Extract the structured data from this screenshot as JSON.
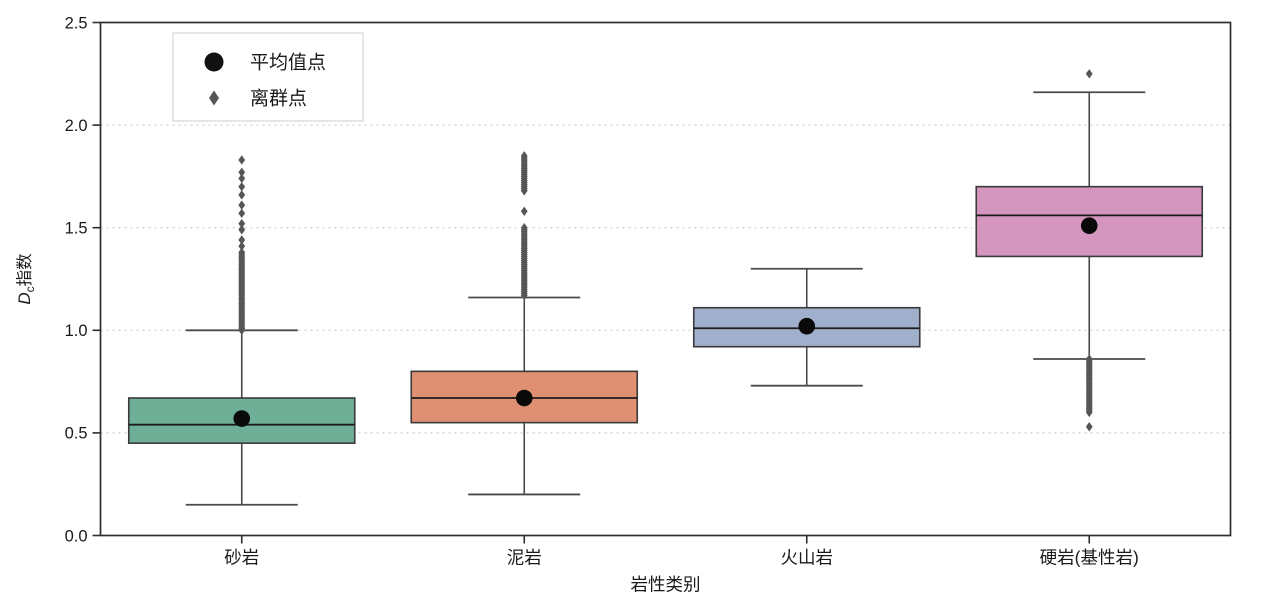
{
  "chart_data": {
    "type": "box",
    "title": "",
    "xlabel": "岩性类别",
    "ylabel": {
      "italic": "D",
      "subscript": "c",
      "text": "指数"
    },
    "ylim": [
      0.0,
      2.5
    ],
    "yticks": [
      0.0,
      0.5,
      1.0,
      1.5,
      2.0,
      2.5
    ],
    "ytick_labels": [
      "0.0",
      "0.5",
      "1.0",
      "1.5",
      "2.0",
      "2.5"
    ],
    "grid": "horizontal-dashed",
    "grid_color": "#cccccc",
    "legend": {
      "position": "upper-left",
      "items": [
        {
          "marker": "circle",
          "color": "#111111",
          "label": "平均值点"
        },
        {
          "marker": "diamond",
          "color": "#565656",
          "label": "离群点"
        }
      ]
    },
    "categories": [
      "砂岩",
      "泥岩",
      "火山岩",
      "硬岩(基性岩)"
    ],
    "series": [
      {
        "category": "砂岩",
        "color": "#6FAE97",
        "whisker_low": 0.15,
        "q1": 0.45,
        "median": 0.54,
        "q3": 0.67,
        "whisker_high": 1.0,
        "mean": 0.57,
        "outliers": [
          1.0,
          1.01,
          1.02,
          1.03,
          1.04,
          1.05,
          1.06,
          1.07,
          1.08,
          1.09,
          1.1,
          1.11,
          1.12,
          1.13,
          1.14,
          1.15,
          1.16,
          1.17,
          1.18,
          1.19,
          1.2,
          1.21,
          1.22,
          1.23,
          1.24,
          1.25,
          1.26,
          1.27,
          1.28,
          1.29,
          1.3,
          1.31,
          1.32,
          1.33,
          1.34,
          1.35,
          1.36,
          1.37,
          1.38,
          1.41,
          1.44,
          1.49,
          1.52,
          1.57,
          1.61,
          1.66,
          1.7,
          1.74,
          1.77,
          1.83
        ]
      },
      {
        "category": "泥岩",
        "color": "#E09072",
        "whisker_low": 0.2,
        "q1": 0.55,
        "median": 0.67,
        "q3": 0.8,
        "whisker_high": 1.16,
        "mean": 0.67,
        "outliers": [
          1.17,
          1.18,
          1.19,
          1.2,
          1.21,
          1.22,
          1.23,
          1.24,
          1.25,
          1.26,
          1.27,
          1.28,
          1.29,
          1.3,
          1.31,
          1.32,
          1.33,
          1.34,
          1.35,
          1.36,
          1.37,
          1.38,
          1.39,
          1.4,
          1.41,
          1.42,
          1.43,
          1.44,
          1.45,
          1.46,
          1.47,
          1.48,
          1.49,
          1.5,
          1.58,
          1.68,
          1.69,
          1.7,
          1.71,
          1.72,
          1.73,
          1.74,
          1.75,
          1.76,
          1.77,
          1.78,
          1.79,
          1.8,
          1.81,
          1.82,
          1.83,
          1.84,
          1.85
        ]
      },
      {
        "category": "火山岩",
        "color": "#A0AFCC",
        "whisker_low": 0.73,
        "q1": 0.92,
        "median": 1.01,
        "q3": 1.11,
        "whisker_high": 1.3,
        "mean": 1.02,
        "outliers": []
      },
      {
        "category": "硬岩(基性岩)",
        "color": "#D495BE",
        "whisker_low": 0.86,
        "q1": 1.36,
        "median": 1.56,
        "q3": 1.7,
        "whisker_high": 2.16,
        "mean": 1.51,
        "outliers": [
          0.53,
          0.6,
          0.61,
          0.62,
          0.63,
          0.64,
          0.65,
          0.66,
          0.67,
          0.68,
          0.69,
          0.7,
          0.71,
          0.72,
          0.73,
          0.74,
          0.75,
          0.76,
          0.77,
          0.78,
          0.79,
          0.8,
          0.81,
          0.82,
          0.83,
          0.84,
          0.85,
          0.86,
          2.25
        ]
      }
    ],
    "outlier_color": "#565656",
    "mean_marker_color": "#0a0a0a"
  }
}
